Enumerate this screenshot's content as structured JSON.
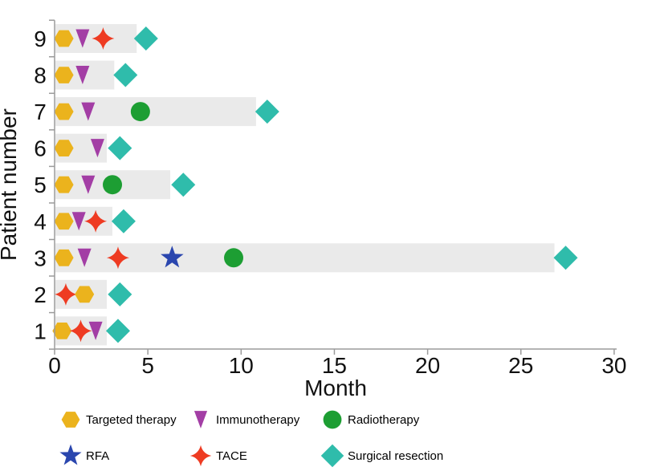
{
  "chart_data": {
    "type": "swimmer-bar",
    "title": "",
    "xlabel": "Month",
    "ylabel": "Patient number",
    "xlim": [
      0,
      30
    ],
    "xticks": [
      0,
      5,
      10,
      15,
      20,
      25,
      30
    ],
    "bar_color": "#eaeaea",
    "axis_color": "#9b9b9b",
    "treatments": {
      "targeted_therapy": {
        "label": "Targeted therapy",
        "marker": "hexagon",
        "color": "#ebb31d"
      },
      "immunotherapy": {
        "label": "Immunotherapy",
        "marker": "triangle-down",
        "color": "#a33ea5"
      },
      "radiotherapy": {
        "label": "Radiotherapy",
        "marker": "circle",
        "color": "#1d9e33"
      },
      "rfa": {
        "label": "RFA",
        "marker": "star5",
        "color": "#2a46ae"
      },
      "tace": {
        "label": "TACE",
        "marker": "star4",
        "color": "#ee3b22"
      },
      "surgical_resection": {
        "label": "Surgical resection",
        "marker": "diamond",
        "color": "#2fbcab"
      }
    },
    "patients": [
      {
        "patient": 9,
        "bar_end": 4.4,
        "events": [
          {
            "type": "targeted_therapy",
            "month": 0.5
          },
          {
            "type": "immunotherapy",
            "month": 1.5
          },
          {
            "type": "tace",
            "month": 2.6
          },
          {
            "type": "surgical_resection",
            "month": 4.9
          }
        ]
      },
      {
        "patient": 8,
        "bar_end": 3.2,
        "events": [
          {
            "type": "targeted_therapy",
            "month": 0.5
          },
          {
            "type": "immunotherapy",
            "month": 1.5
          },
          {
            "type": "surgical_resection",
            "month": 3.8
          }
        ]
      },
      {
        "patient": 7,
        "bar_end": 10.8,
        "events": [
          {
            "type": "targeted_therapy",
            "month": 0.5
          },
          {
            "type": "immunotherapy",
            "month": 1.8
          },
          {
            "type": "radiotherapy",
            "month": 4.6
          },
          {
            "type": "surgical_resection",
            "month": 11.4
          }
        ]
      },
      {
        "patient": 6,
        "bar_end": 2.8,
        "events": [
          {
            "type": "targeted_therapy",
            "month": 0.5
          },
          {
            "type": "immunotherapy",
            "month": 2.3
          },
          {
            "type": "surgical_resection",
            "month": 3.5
          }
        ]
      },
      {
        "patient": 5,
        "bar_end": 6.2,
        "events": [
          {
            "type": "targeted_therapy",
            "month": 0.5
          },
          {
            "type": "immunotherapy",
            "month": 1.8
          },
          {
            "type": "radiotherapy",
            "month": 3.1
          },
          {
            "type": "surgical_resection",
            "month": 6.9
          }
        ]
      },
      {
        "patient": 4,
        "bar_end": 3.1,
        "events": [
          {
            "type": "targeted_therapy",
            "month": 0.5
          },
          {
            "type": "immunotherapy",
            "month": 1.3
          },
          {
            "type": "tace",
            "month": 2.2
          },
          {
            "type": "surgical_resection",
            "month": 3.7
          }
        ]
      },
      {
        "patient": 3,
        "bar_end": 26.8,
        "events": [
          {
            "type": "targeted_therapy",
            "month": 0.5
          },
          {
            "type": "immunotherapy",
            "month": 1.6
          },
          {
            "type": "tace",
            "month": 3.4
          },
          {
            "type": "rfa",
            "month": 6.3
          },
          {
            "type": "radiotherapy",
            "month": 9.6
          },
          {
            "type": "surgical_resection",
            "month": 27.4
          }
        ]
      },
      {
        "patient": 2,
        "bar_end": 2.8,
        "events": [
          {
            "type": "tace",
            "month": 0.6
          },
          {
            "type": "targeted_therapy",
            "month": 1.6
          },
          {
            "type": "surgical_resection",
            "month": 3.5
          }
        ]
      },
      {
        "patient": 1,
        "bar_end": 2.8,
        "events": [
          {
            "type": "targeted_therapy",
            "month": 0.4
          },
          {
            "type": "tace",
            "month": 1.4
          },
          {
            "type": "immunotherapy",
            "month": 2.2
          },
          {
            "type": "surgical_resection",
            "month": 3.4
          }
        ]
      }
    ],
    "legend": {
      "rows": [
        [
          "targeted_therapy",
          "immunotherapy",
          "radiotherapy"
        ],
        [
          "rfa",
          "tace",
          "surgical_resection"
        ]
      ]
    }
  }
}
